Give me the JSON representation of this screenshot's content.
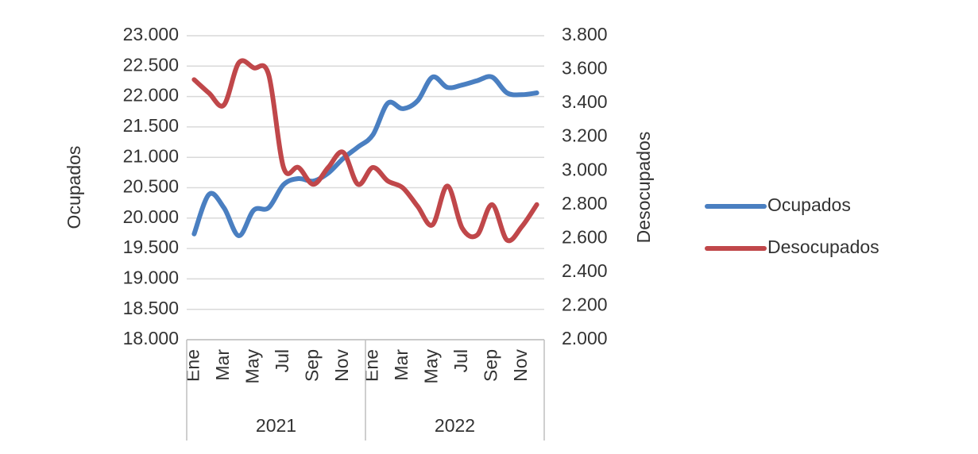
{
  "chart_data": {
    "type": "line",
    "categories": [
      "Ene",
      null,
      "Mar",
      null,
      "May",
      null,
      "Jul",
      null,
      "Sep",
      null,
      "Nov",
      null,
      "Ene",
      null,
      "Mar",
      null,
      "May",
      null,
      "Jul",
      null,
      "Sep",
      null,
      "Nov",
      null
    ],
    "groups": [
      "2021",
      "2022"
    ],
    "y_label": "Ocupados",
    "y2_label": "Desocupados",
    "ylim": [
      18000,
      23000
    ],
    "yticks": [
      {
        "value": 18000,
        "label": "18.000"
      },
      {
        "value": 18500,
        "label": "18.500"
      },
      {
        "value": 19000,
        "label": "19.000"
      },
      {
        "value": 19500,
        "label": "19.500"
      },
      {
        "value": 20000,
        "label": "20.000"
      },
      {
        "value": 20500,
        "label": "20.500"
      },
      {
        "value": 21000,
        "label": "21.000"
      },
      {
        "value": 21500,
        "label": "21.500"
      },
      {
        "value": 22000,
        "label": "22.000"
      },
      {
        "value": 22500,
        "label": "22.500"
      },
      {
        "value": 23000,
        "label": "23.000"
      }
    ],
    "y2lim": [
      2000,
      3800
    ],
    "y2ticks": [
      {
        "value": 2000,
        "label": "2.000"
      },
      {
        "value": 2200,
        "label": "2.200"
      },
      {
        "value": 2400,
        "label": "2.400"
      },
      {
        "value": 2600,
        "label": "2.600"
      },
      {
        "value": 2800,
        "label": "2.800"
      },
      {
        "value": 3000,
        "label": "3.000"
      },
      {
        "value": 3200,
        "label": "3.200"
      },
      {
        "value": 3400,
        "label": "3.400"
      },
      {
        "value": 3600,
        "label": "3.600"
      },
      {
        "value": 3800,
        "label": "3.800"
      }
    ],
    "grid": true,
    "legend": "right",
    "series": [
      {
        "name": "Ocupados",
        "color": "#4a7fc1",
        "values": [
          19740,
          20390,
          20170,
          19710,
          20130,
          20170,
          20550,
          20650,
          20610,
          20740,
          20980,
          21170,
          21370,
          21890,
          21800,
          21930,
          22320,
          22150,
          22190,
          22260,
          22320,
          22060,
          22030,
          22060
        ]
      },
      {
        "name": "Desocupados",
        "color": "#c0474a",
        "axis": "y2",
        "values": [
          3540,
          3460,
          3390,
          3640,
          3610,
          3570,
          3020,
          3020,
          2920,
          3020,
          3110,
          2920,
          3020,
          2940,
          2900,
          2790,
          2680,
          2910,
          2660,
          2620,
          2800,
          2590,
          2670,
          2800
        ]
      }
    ]
  }
}
